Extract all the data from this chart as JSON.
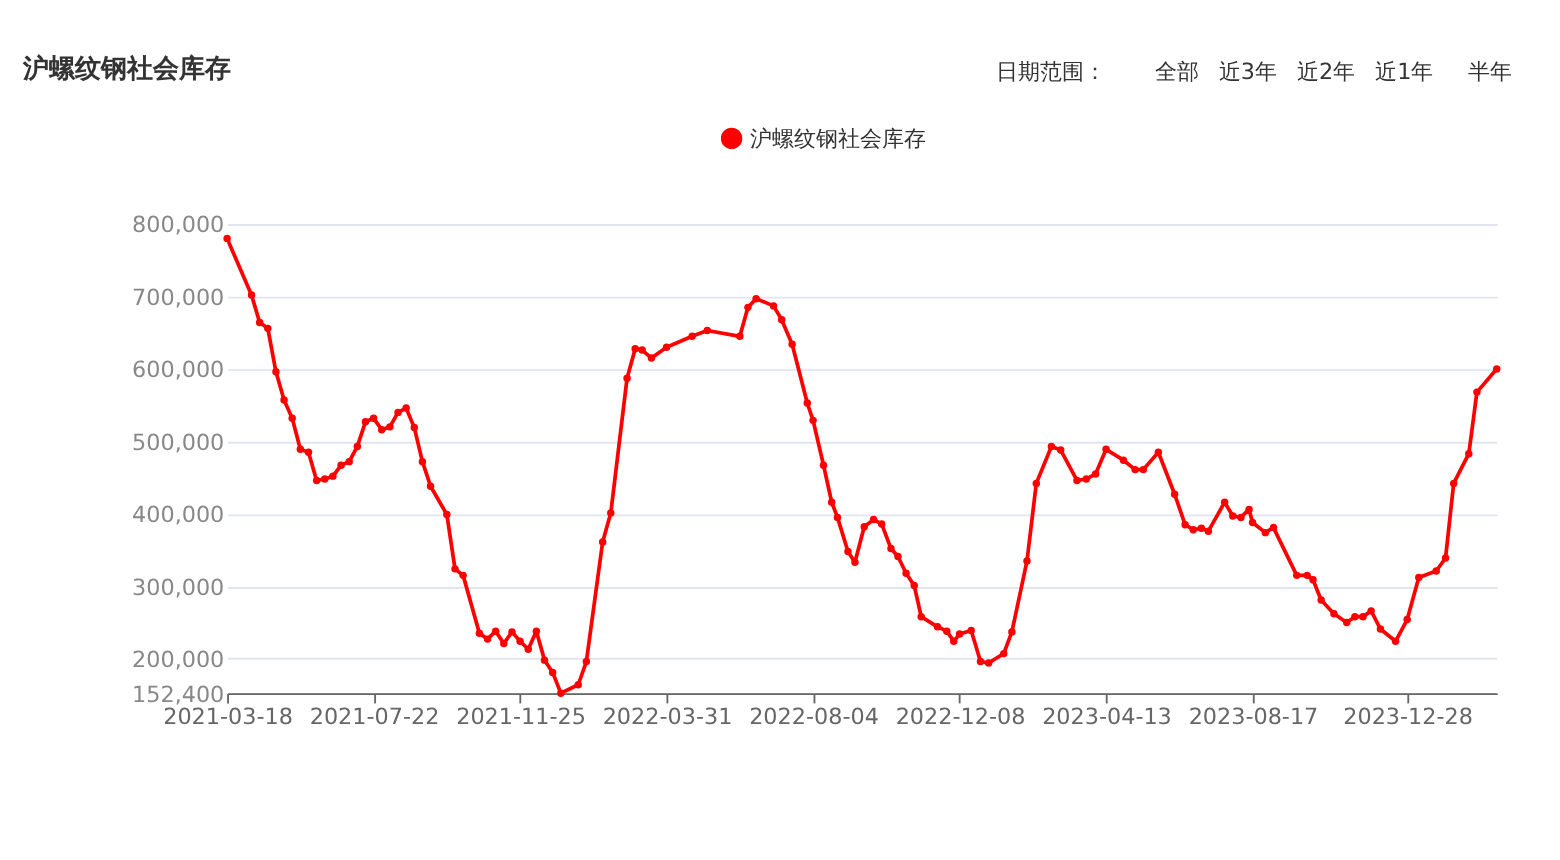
{
  "chart_data": {
    "type": "line",
    "title": "沪螺纹钢社会库存",
    "annotations": [
      "日期范围：",
      "全部",
      "近3年",
      "近2年",
      "近1年",
      "半年"
    ],
    "x": [
      "2021-03-18",
      "2021-04-08",
      "2021-04-15",
      "2021-04-22",
      "2021-04-29",
      "2021-05-06",
      "2021-05-13",
      "2021-05-20",
      "2021-05-27",
      "2021-06-03",
      "2021-06-10",
      "2021-06-17",
      "2021-06-24",
      "2021-07-01",
      "2021-07-08",
      "2021-07-15",
      "2021-07-22",
      "2021-07-29",
      "2021-08-05",
      "2021-08-12",
      "2021-08-19",
      "2021-08-26",
      "2021-09-02",
      "2021-09-09",
      "2021-09-23",
      "2021-09-30",
      "2021-10-07",
      "2021-10-21",
      "2021-10-28",
      "2021-11-04",
      "2021-11-11",
      "2021-11-18",
      "2021-11-25",
      "2021-12-02",
      "2021-12-09",
      "2021-12-16",
      "2021-12-23",
      "2021-12-30",
      "2022-01-14",
      "2022-01-21",
      "2022-02-04",
      "2022-02-11",
      "2022-02-25",
      "2022-03-04",
      "2022-03-10",
      "2022-03-18",
      "2022-03-31",
      "2022-04-22",
      "2022-05-05",
      "2022-06-02",
      "2022-06-09",
      "2022-06-16",
      "2022-07-01",
      "2022-07-08",
      "2022-07-17",
      "2022-07-30",
      "2022-08-04",
      "2022-08-13",
      "2022-08-20",
      "2022-08-25",
      "2022-09-03",
      "2022-09-09",
      "2022-09-17",
      "2022-09-25",
      "2022-10-02",
      "2022-10-10",
      "2022-10-16",
      "2022-10-23",
      "2022-10-30",
      "2022-11-05",
      "2022-11-19",
      "2022-11-27",
      "2022-12-03",
      "2022-12-08",
      "2022-12-18",
      "2022-12-26",
      "2023-01-02",
      "2023-01-15",
      "2023-01-22",
      "2023-02-04",
      "2023-02-12",
      "2023-02-25",
      "2023-03-05",
      "2023-03-19",
      "2023-03-27",
      "2023-04-04",
      "2023-04-13",
      "2023-04-28",
      "2023-05-08",
      "2023-05-15",
      "2023-05-28",
      "2023-06-11",
      "2023-06-20",
      "2023-06-27",
      "2023-07-04",
      "2023-07-10",
      "2023-07-24",
      "2023-07-31",
      "2023-08-07",
      "2023-08-14",
      "2023-08-17",
      "2023-08-28",
      "2023-09-04",
      "2023-09-24",
      "2023-10-03",
      "2023-10-08",
      "2023-10-15",
      "2023-10-26",
      "2023-11-06",
      "2023-11-13",
      "2023-11-20",
      "2023-11-27",
      "2023-12-05",
      "2023-12-18",
      "2023-12-28",
      "2024-01-07",
      "2024-01-22",
      "2024-01-30",
      "2024-02-06",
      "2024-02-19",
      "2024-02-26",
      "2024-03-14"
    ],
    "series": [
      {
        "name": "沪螺纹钢社会库存",
        "color": "#ff0000",
        "values": [
          780000,
          702000,
          664000,
          656000,
          596000,
          557000,
          532000,
          489000,
          485000,
          446000,
          448000,
          452000,
          467000,
          472000,
          493000,
          527000,
          532000,
          516000,
          520000,
          540000,
          546000,
          519000,
          472000,
          438000,
          399000,
          324000,
          315000,
          235000,
          227000,
          238000,
          221000,
          237000,
          224000,
          213000,
          238000,
          198000,
          181000,
          152400,
          164000,
          196000,
          361000,
          401000,
          587000,
          628000,
          626000,
          615000,
          630000,
          645000,
          653000,
          645000,
          685000,
          697000,
          687000,
          668000,
          634000,
          553000,
          529000,
          467000,
          416000,
          395000,
          348000,
          333000,
          382000,
          392000,
          386000,
          352000,
          341000,
          318000,
          301000,
          258000,
          244000,
          238000,
          224000,
          234000,
          239000,
          196000,
          194000,
          207000,
          237000,
          335000,
          442000,
          493000,
          488000,
          446000,
          448000,
          455000,
          489000,
          474000,
          461000,
          461000,
          485000,
          427000,
          385000,
          378000,
          380000,
          376000,
          416000,
          397000,
          395000,
          406000,
          388000,
          374000,
          381000,
          315000,
          315000,
          309000,
          281000,
          262000,
          250000,
          258000,
          258000,
          266000,
          241000,
          224000,
          254000,
          312000,
          321000,
          339000,
          442000,
          483000,
          568000,
          600000
        ]
      }
    ],
    "xlim": [
      "2021-03-18",
      "2024-03-14"
    ],
    "xticks": [
      "2021-03-18",
      "2021-07-22",
      "2021-11-25",
      "2022-03-31",
      "2022-08-04",
      "2022-12-08",
      "2023-04-13",
      "2023-08-17",
      "2023-12-28"
    ],
    "ylim": [
      152400,
      800000
    ],
    "yticks": [
      {
        "value": 152400,
        "label": "152,400"
      },
      {
        "value": 200000,
        "label": "200,000"
      },
      {
        "value": 300000,
        "label": "300,000"
      },
      {
        "value": 400000,
        "label": "400,000"
      },
      {
        "value": 500000,
        "label": "500,000"
      },
      {
        "value": 600000,
        "label": "600,000"
      },
      {
        "value": 700000,
        "label": "700,000"
      },
      {
        "value": 800000,
        "label": "800,000"
      }
    ],
    "grid": "y",
    "legend": "top",
    "marker": "circle",
    "line_style": "solid"
  }
}
